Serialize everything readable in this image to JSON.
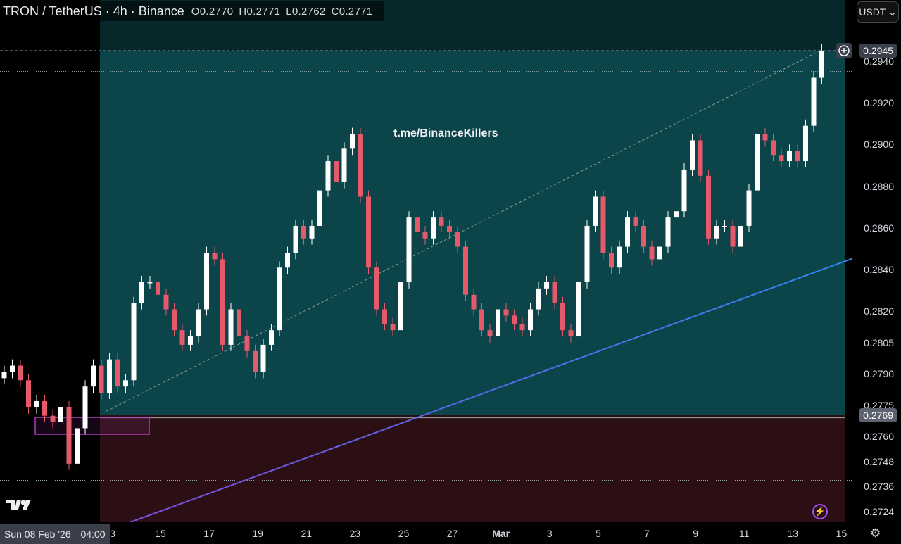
{
  "header": {
    "symbol": "TRON / TetherUS · 4h · Binance",
    "open": "O0.2770",
    "high": "H0.2771",
    "low": "L0.2762",
    "close": "C0.2771"
  },
  "currency_button": "USDT ⌄",
  "watermark": "t.me/BinanceKillers",
  "crosshair_date": {
    "date": "Sun 08 Feb '26",
    "time": "04:00"
  },
  "price_tags": {
    "last": "0.2945",
    "zone": "0.2769"
  },
  "colors": {
    "up": "#ffffff",
    "down": "#e5596b",
    "trend_start": "#7b4fe0",
    "trend_end": "#2f86f0",
    "box": "#b03cc0"
  },
  "chart_data": {
    "type": "candlestick",
    "title": "TRON / TetherUS · 4h · Binance",
    "ylim": [
      0.2718,
      0.2963
    ],
    "y_ticks": [
      "0.2940",
      "0.2920",
      "0.2900",
      "0.2880",
      "0.2860",
      "0.2840",
      "0.2820",
      "0.2805",
      "0.2790",
      "0.2775",
      "0.2760",
      "0.2748",
      "0.2736",
      "0.2724"
    ],
    "x_ticks": [
      "3",
      "15",
      "17",
      "19",
      "21",
      "23",
      "25",
      "27",
      "Mar",
      "3",
      "5",
      "7",
      "9",
      "11",
      "13",
      "15"
    ],
    "first_open": 0.2788,
    "closes": [
      0.2791,
      0.2794,
      0.2787,
      0.2774,
      0.2777,
      0.277,
      0.2767,
      0.2774,
      0.2747,
      0.2764,
      0.2784,
      0.2794,
      0.2781,
      0.2797,
      0.2784,
      0.2787,
      0.2824,
      0.2834,
      0.2834,
      0.2828,
      0.2821,
      0.2811,
      0.2804,
      0.2808,
      0.2821,
      0.2848,
      0.2845,
      0.2804,
      0.2821,
      0.2808,
      0.2801,
      0.2791,
      0.2804,
      0.2811,
      0.2841,
      0.2848,
      0.2861,
      0.2855,
      0.2861,
      0.2878,
      0.2892,
      0.2882,
      0.2898,
      0.2905,
      0.2875,
      0.2841,
      0.2821,
      0.2814,
      0.2811,
      0.2834,
      0.2865,
      0.2858,
      0.2855,
      0.2865,
      0.2861,
      0.2858,
      0.2851,
      0.2828,
      0.2821,
      0.2811,
      0.2808,
      0.2821,
      0.2818,
      0.2814,
      0.2811,
      0.2821,
      0.2831,
      0.2834,
      0.2824,
      0.2811,
      0.2808,
      0.2834,
      0.2861,
      0.2875,
      0.2848,
      0.2841,
      0.2851,
      0.2865,
      0.2861,
      0.2851,
      0.2845,
      0.2851,
      0.2865,
      0.2868,
      0.2888,
      0.2902,
      0.2885,
      0.2855,
      0.2861,
      0.2861,
      0.2851,
      0.2861,
      0.2878,
      0.2905,
      0.2902,
      0.2895,
      0.2892,
      0.2897,
      0.2892,
      0.2909,
      0.2932,
      0.2945
    ],
    "levels": {
      "demand_zone_top": 0.2769,
      "range_top": 0.2945,
      "dotted_upper": 0.2935,
      "dotted_lower": 0.2739
    },
    "trendline": {
      "from_price": 0.2716,
      "to_price": 0.2842
    },
    "channel_line": {
      "from_price": 0.2772,
      "to_price": 0.2945
    }
  }
}
